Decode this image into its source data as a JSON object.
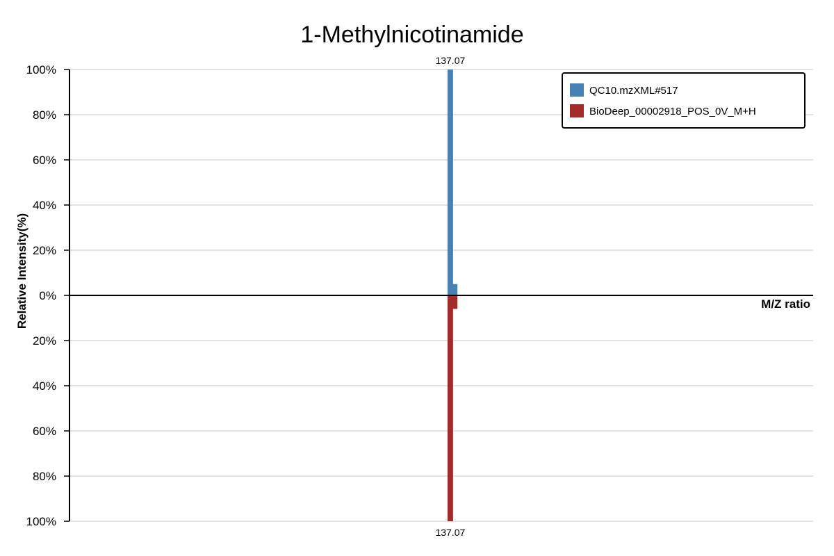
{
  "chart_data": {
    "type": "bar",
    "title": "1-Methylnicotinamide",
    "xlabel": "M/Z ratio",
    "ylabel": "Relative Intensity(%)",
    "mirror": true,
    "ylim": [
      -100,
      100
    ],
    "xlim": [
      49,
      221
    ],
    "y_ticks_top": [
      "100%",
      "80%",
      "60%",
      "40%",
      "20%",
      "0%"
    ],
    "y_ticks_bottom": [
      "20%",
      "40%",
      "60%",
      "80%",
      "100%"
    ],
    "grid": true,
    "legend_position": "top-right",
    "series": [
      {
        "name": "QC10.mzXML#517",
        "color": "#4682b4",
        "direction": "up",
        "points": [
          {
            "mz": 137.07,
            "intensity": 100,
            "label": "137.07"
          },
          {
            "mz": 138.08,
            "intensity": 5
          }
        ]
      },
      {
        "name": "BioDeep_00002918_POS_0V_M+H",
        "color": "#a52a2a",
        "direction": "down",
        "points": [
          {
            "mz": 137.07,
            "intensity": 100,
            "label": "137.07"
          },
          {
            "mz": 138.08,
            "intensity": 6
          }
        ]
      }
    ]
  }
}
